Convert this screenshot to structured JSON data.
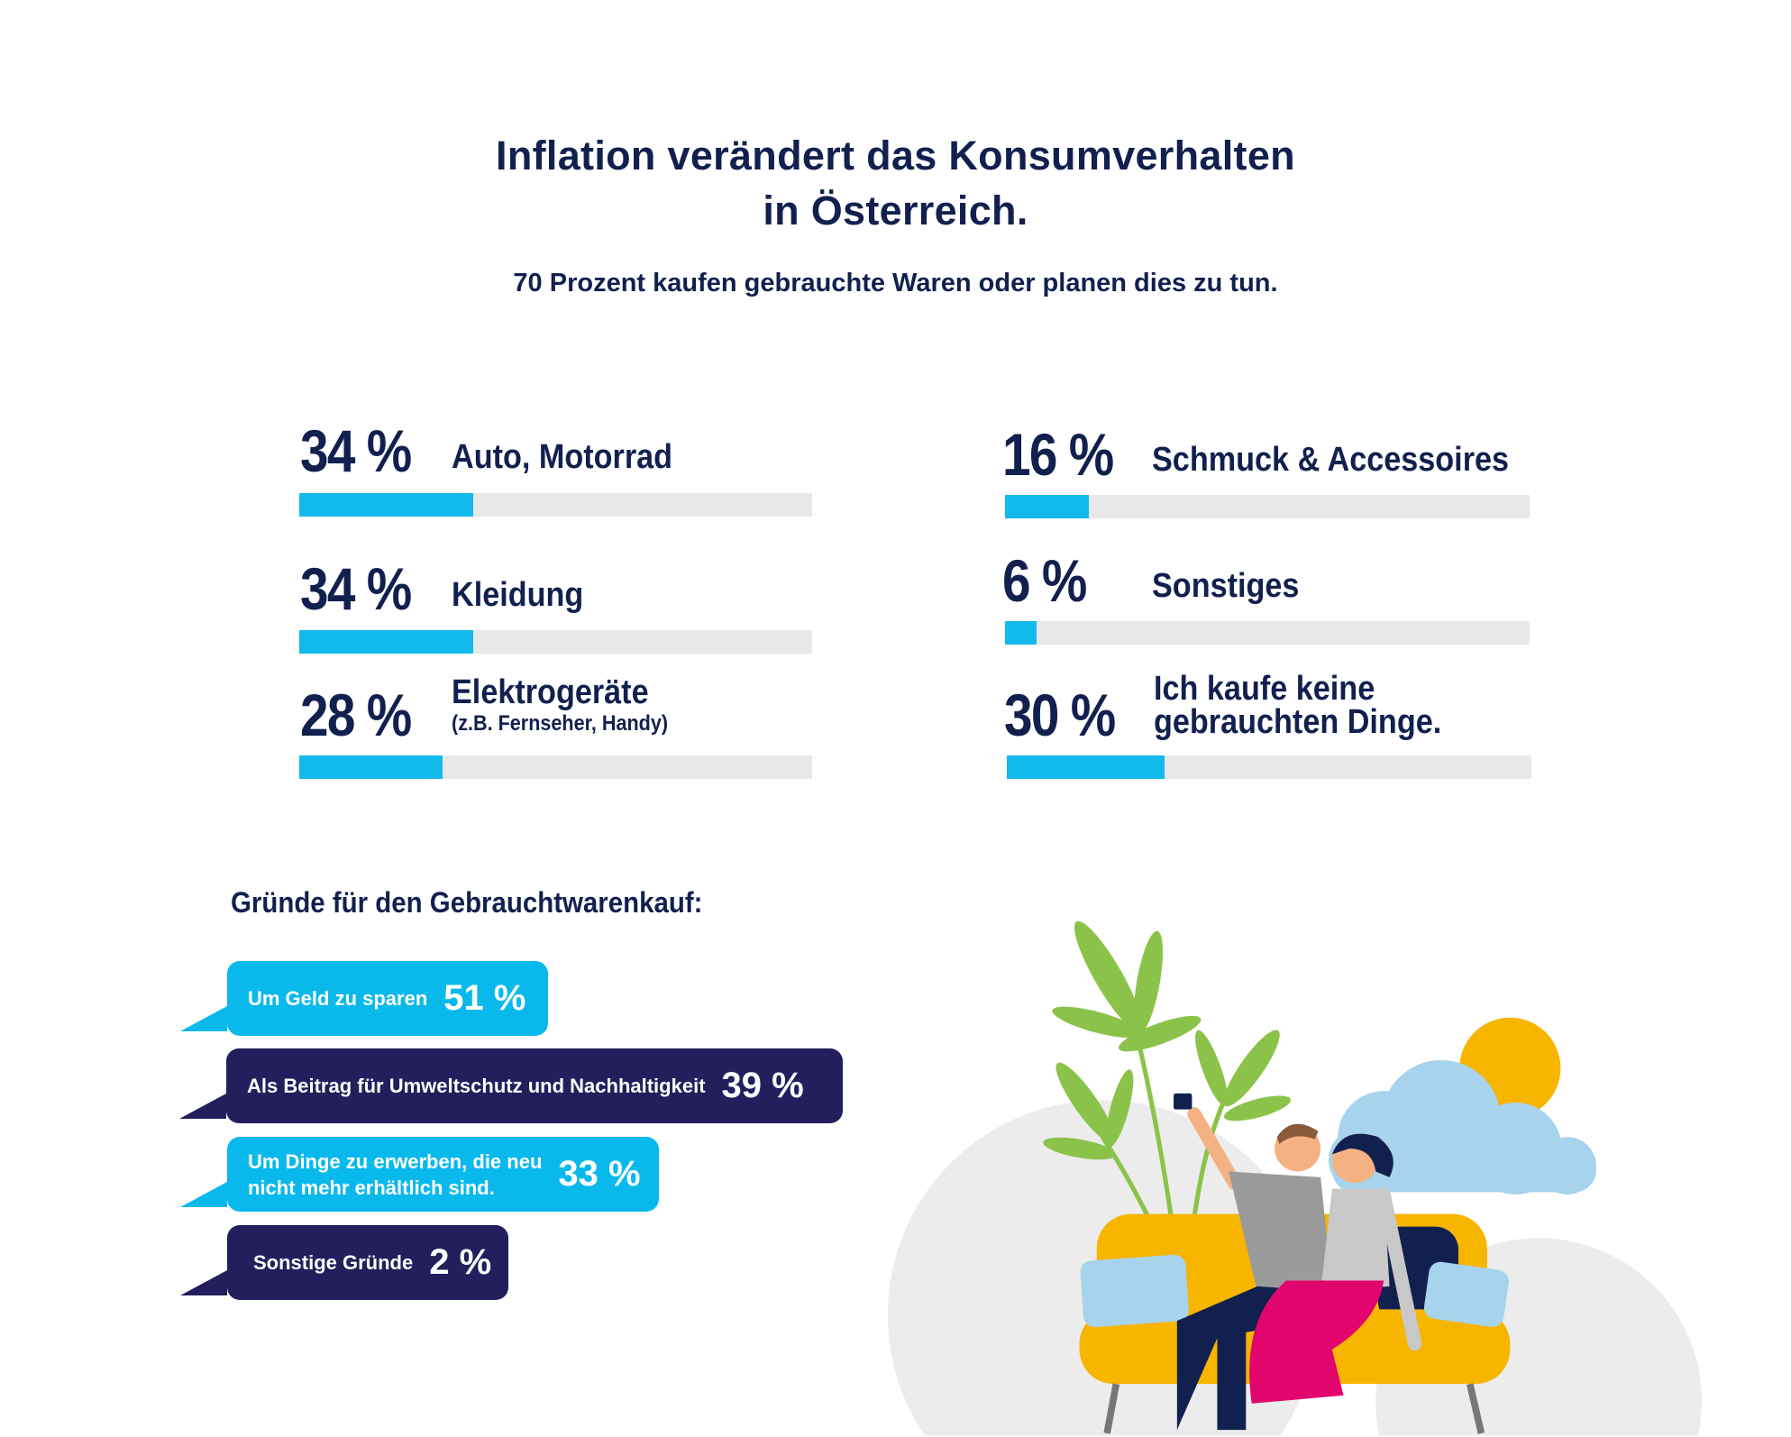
{
  "title": {
    "line1": "Inflation verändert das Konsumverhalten",
    "line2": "in Österreich."
  },
  "subtitle": "70 Prozent kaufen gebrauchte Waren oder planen dies zu tun.",
  "chart_data": [
    {
      "type": "bar",
      "orientation": "horizontal",
      "xlim": [
        0,
        100
      ],
      "categories": [
        "Auto, Motorrad",
        "Kleidung",
        "Elektrogeräte (z.B. Fernseher, Handy)",
        "Schmuck & Accessoires",
        "Sonstiges",
        "Ich kaufe keine gebrauchten Dinge."
      ],
      "values": [
        34,
        34,
        28,
        16,
        6,
        30
      ],
      "items": [
        {
          "pct": "34 %",
          "label": "Auto, Motorrad",
          "value": 34
        },
        {
          "pct": "34 %",
          "label": "Kleidung",
          "value": 34
        },
        {
          "pct": "28 %",
          "label": "Elektrogeräte",
          "sublabel": "(z.B. Fernseher, Handy)",
          "value": 28
        },
        {
          "pct": "16 %",
          "label": "Schmuck & Accessoires",
          "value": 16
        },
        {
          "pct": "6 %",
          "label": "Sonstiges",
          "value": 6
        },
        {
          "pct": "30 %",
          "label_line1": "Ich kaufe keine",
          "label_line2": "gebrauchten Dinge.",
          "value": 30
        }
      ],
      "colors": {
        "fill": "#12baec",
        "track": "#e8e8ea"
      }
    },
    {
      "type": "bar",
      "title": "Gründe für den Gebrauchtwarenkauf:",
      "categories": [
        "Um Geld zu sparen",
        "Als Beitrag für Umweltschutz und Nachhaltigkeit",
        "Um Dinge zu erwerben, die neu nicht mehr erhältlich sind.",
        "Sonstige Gründe"
      ],
      "values": [
        51,
        39,
        33,
        2
      ],
      "items": [
        {
          "label": "Um Geld zu sparen",
          "pct": "51 %",
          "color": "#0ab9ec"
        },
        {
          "label": "Als Beitrag für Umweltschutz und Nachhaltigkeit",
          "pct": "39 %",
          "color": "#221f5c"
        },
        {
          "label_line1": "Um Dinge zu erwerben, die neu",
          "label_line2": "nicht mehr erhältlich sind.",
          "pct": "33 %",
          "color": "#0ab9ec"
        },
        {
          "label": "Sonstige Gründe",
          "pct": "2 %",
          "color": "#221f5c"
        }
      ]
    }
  ]
}
